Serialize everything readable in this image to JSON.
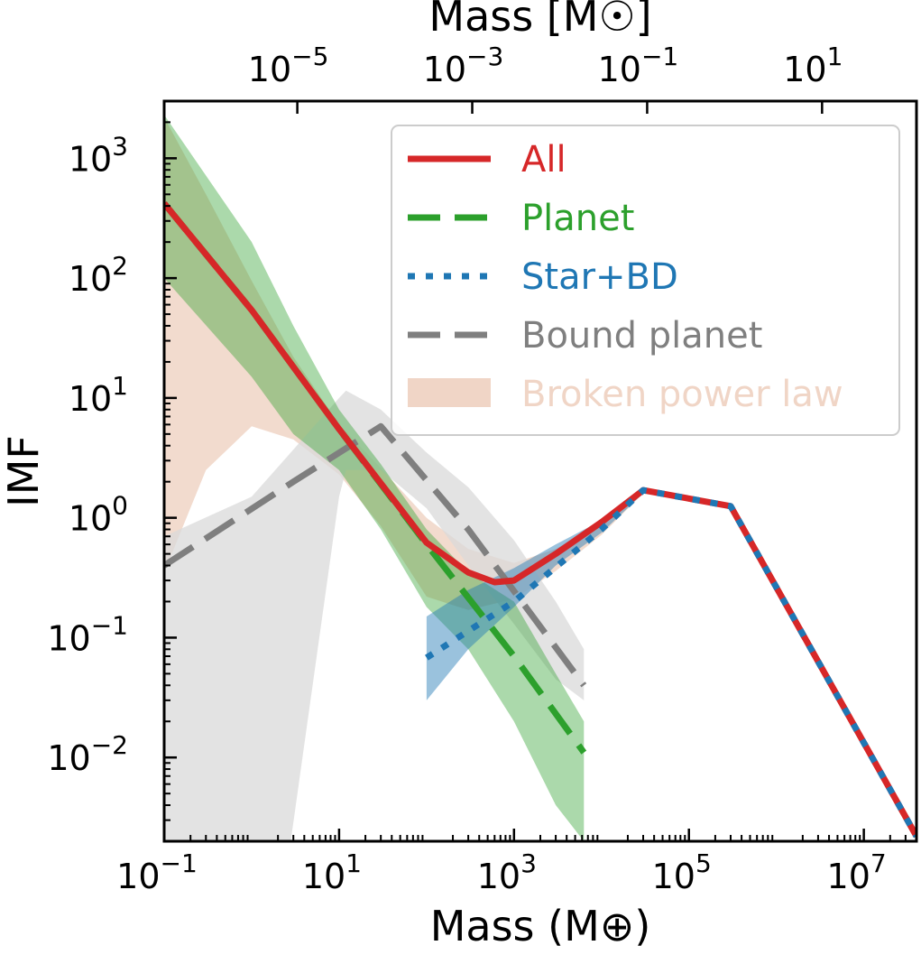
{
  "chart_data": {
    "type": "line",
    "xscale": "log",
    "yscale": "log",
    "xlabel": "Mass (M⊕)",
    "ylabel": "IMF",
    "top_xlabel": "Mass [M☉]",
    "xlim": [
      0.1,
      40000000
    ],
    "ylim": [
      0.002,
      3000
    ],
    "x_ticks": [
      {
        "value": 0.1,
        "base": "10",
        "exp": "−1"
      },
      {
        "value": 10,
        "base": "10",
        "exp": "1"
      },
      {
        "value": 1000,
        "base": "10",
        "exp": "3"
      },
      {
        "value": 100000,
        "base": "10",
        "exp": "5"
      },
      {
        "value": 10000000,
        "base": "10",
        "exp": "7"
      }
    ],
    "top_x_ticks": [
      {
        "value": 3.33,
        "base": "10",
        "exp": "−5"
      },
      {
        "value": 333,
        "base": "10",
        "exp": "−3"
      },
      {
        "value": 33300,
        "base": "10",
        "exp": "−1"
      },
      {
        "value": 3330000,
        "base": "10",
        "exp": "1"
      }
    ],
    "y_ticks": [
      {
        "value": 0.01,
        "base": "10",
        "exp": "−2"
      },
      {
        "value": 0.1,
        "base": "10",
        "exp": "−1"
      },
      {
        "value": 1,
        "base": "10",
        "exp": "0"
      },
      {
        "value": 10,
        "base": "10",
        "exp": "1"
      },
      {
        "value": 100,
        "base": "10",
        "exp": "2"
      },
      {
        "value": 1000,
        "base": "10",
        "exp": "3"
      }
    ],
    "legend": {
      "position": "upper right",
      "entries": [
        {
          "label": "All",
          "color": "#d62728",
          "style": "solid"
        },
        {
          "label": "Planet",
          "color": "#2ca02c",
          "style": "dashed"
        },
        {
          "label": "Star+BD",
          "color": "#1f77b4",
          "style": "dotted"
        },
        {
          "label": "Bound planet",
          "color": "#7f7f7f",
          "style": "dashed"
        },
        {
          "label": "Broken power law",
          "color": "#f0d5c6",
          "style": "band"
        }
      ]
    },
    "series": [
      {
        "name": "All",
        "color": "#d62728",
        "style": "solid",
        "x": [
          0.1,
          1,
          10,
          100,
          300,
          600,
          1000,
          3000,
          10000,
          30000,
          300000,
          40000000
        ],
        "y": [
          420,
          54,
          5.5,
          0.62,
          0.35,
          0.29,
          0.3,
          0.5,
          0.92,
          1.7,
          1.25,
          0.0022
        ]
      },
      {
        "name": "Planet",
        "color": "#2ca02c",
        "style": "dashed",
        "x": [
          0.1,
          1,
          10,
          100,
          1000,
          6300
        ],
        "y": [
          420,
          54,
          5.5,
          0.6,
          0.07,
          0.011
        ]
      },
      {
        "name": "Star+BD",
        "color": "#1f77b4",
        "style": "dotted",
        "x": [
          100,
          1000,
          10000,
          30000,
          300000,
          40000000
        ],
        "y": [
          0.068,
          0.2,
          0.8,
          1.7,
          1.25,
          0.0022
        ]
      },
      {
        "name": "Bound planet",
        "color": "#7f7f7f",
        "style": "dashed",
        "x": [
          0.1,
          3,
          30,
          300,
          6300
        ],
        "y": [
          0.4,
          2.0,
          5.8,
          0.8,
          0.04
        ]
      }
    ],
    "bands": [
      {
        "name": "Broken power law",
        "color": "#f0d5c6",
        "opacity": 0.85,
        "x": [
          0.1,
          0.3,
          1,
          3,
          10,
          30,
          100,
          300,
          1000,
          3000,
          10000,
          30000
        ],
        "lower": [
          0.35,
          2.5,
          5.8,
          4.5,
          2.3,
          0.85,
          0.22,
          0.17,
          0.21,
          0.36,
          0.72,
          1.6
        ],
        "upper": [
          2200,
          500,
          95,
          22,
          6,
          2.6,
          1.0,
          0.55,
          0.42,
          0.55,
          0.9,
          1.75
        ]
      },
      {
        "name": "Bound planet band",
        "color": "#d9d9d9",
        "opacity": 0.75,
        "x": [
          0.1,
          1,
          2.8,
          10,
          12,
          30,
          100,
          300,
          1000,
          3000,
          6300
        ],
        "lower": [
          0.002,
          0.002,
          0.002,
          1.5,
          2.5,
          2.5,
          1.2,
          0.4,
          0.13,
          0.045,
          0.03
        ],
        "upper": [
          0.7,
          1.5,
          3.5,
          10,
          11.5,
          8,
          3.5,
          1.8,
          0.65,
          0.2,
          0.08
        ]
      },
      {
        "name": "Planet band",
        "color": "#2ca02c",
        "opacity": 0.4,
        "x": [
          0.1,
          1,
          3,
          10,
          30,
          100,
          300,
          1000,
          3000,
          6300
        ],
        "lower": [
          100,
          15,
          5,
          2.5,
          0.8,
          0.18,
          0.08,
          0.02,
          0.004,
          0.002
        ],
        "upper": [
          2300,
          200,
          40,
          8,
          2.8,
          0.8,
          0.35,
          0.2,
          0.05,
          0.02
        ]
      },
      {
        "name": "Star+BD band",
        "color": "#1f77b4",
        "opacity": 0.45,
        "x": [
          100,
          300,
          1000,
          3000,
          10000,
          30000
        ],
        "lower": [
          0.03,
          0.08,
          0.18,
          0.4,
          0.75,
          1.6
        ],
        "upper": [
          0.15,
          0.25,
          0.38,
          0.6,
          0.95,
          1.75
        ]
      }
    ]
  }
}
